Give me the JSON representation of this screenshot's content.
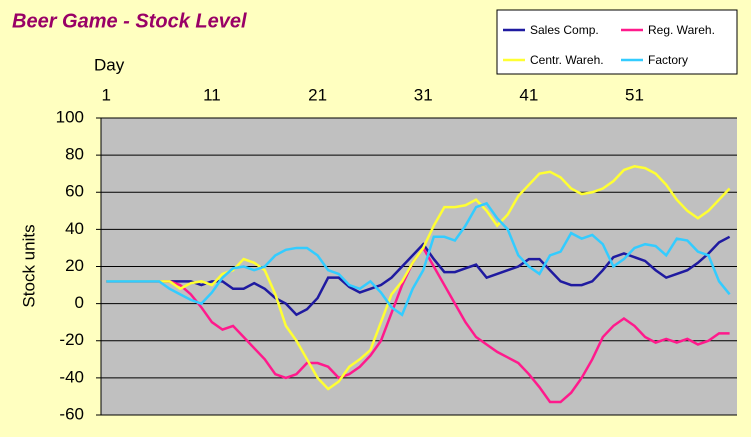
{
  "chart_data": {
    "type": "line",
    "title": "Beer Game - Stock Level",
    "x_label": "Day",
    "y_label": "Stock units",
    "x": [
      1,
      2,
      3,
      4,
      5,
      6,
      7,
      8,
      9,
      10,
      11,
      12,
      13,
      14,
      15,
      16,
      17,
      18,
      19,
      20,
      21,
      22,
      23,
      24,
      25,
      26,
      27,
      28,
      29,
      30,
      31,
      32,
      33,
      34,
      35,
      36,
      37,
      38,
      39,
      40,
      41,
      42,
      43,
      44,
      45,
      46,
      47,
      48,
      49,
      50,
      51,
      52,
      53,
      54,
      55,
      56,
      57,
      58,
      59,
      60
    ],
    "xlim": [
      0.5,
      60.7
    ],
    "xticks": [
      1,
      11,
      21,
      31,
      41,
      51
    ],
    "ylim": [
      -60,
      100
    ],
    "yticks": [
      -60,
      -40,
      -20,
      0,
      20,
      40,
      60,
      80,
      100
    ],
    "grid": true,
    "plot_background": "#c0c0c0",
    "series": [
      {
        "name": "Sales Comp.",
        "color": "#1f1aa0",
        "values": [
          12,
          12,
          12,
          12,
          12,
          12,
          12,
          12,
          12,
          10,
          12,
          12,
          8,
          8,
          11,
          8,
          3,
          0,
          -6,
          -3,
          3,
          14,
          14,
          9,
          6,
          8,
          10,
          14,
          20,
          26,
          32,
          24,
          17,
          17,
          19,
          21,
          14,
          16,
          18,
          20,
          24,
          24,
          18,
          12,
          10,
          10,
          12,
          18,
          25,
          27,
          25,
          23,
          18,
          14,
          16,
          18,
          22,
          27,
          33,
          36
        ]
      },
      {
        "name": "Reg. Wareh.",
        "color": "#ff1a8c",
        "values": [
          12,
          12,
          12,
          12,
          12,
          12,
          12,
          10,
          5,
          -2,
          -10,
          -14,
          -12,
          -18,
          -24,
          -30,
          -38,
          -40,
          -38,
          -32,
          -32,
          -34,
          -40,
          -38,
          -34,
          -28,
          -20,
          -5,
          10,
          22,
          30,
          20,
          10,
          0,
          -10,
          -18,
          -22,
          -26,
          -29,
          -32,
          -38,
          -45,
          -53,
          -53,
          -48,
          -40,
          -30,
          -18,
          -12,
          -8,
          -12,
          -18,
          -21,
          -19,
          -21,
          -19,
          -22,
          -20,
          -16,
          -16
        ]
      },
      {
        "name": "Centr. Wareh.",
        "color": "#ffff33",
        "values": [
          12,
          12,
          12,
          12,
          12,
          12,
          12,
          8,
          11,
          12,
          10,
          16,
          18,
          24,
          22,
          18,
          5,
          -12,
          -20,
          -30,
          -40,
          -46,
          -42,
          -34,
          -30,
          -25,
          -10,
          5,
          12,
          22,
          30,
          42,
          52,
          52,
          53,
          56,
          50,
          42,
          48,
          58,
          64,
          70,
          71,
          68,
          62,
          59,
          60,
          62,
          66,
          72,
          74,
          73,
          70,
          64,
          56,
          50,
          46,
          50,
          56,
          62
        ]
      },
      {
        "name": "Factory",
        "color": "#33ccff",
        "values": [
          12,
          12,
          12,
          12,
          12,
          12,
          8,
          5,
          2,
          0,
          6,
          14,
          19,
          20,
          18,
          20,
          26,
          29,
          30,
          30,
          26,
          18,
          16,
          10,
          8,
          12,
          6,
          -2,
          -6,
          8,
          18,
          36,
          36,
          34,
          42,
          52,
          54,
          46,
          40,
          26,
          20,
          16,
          26,
          28,
          38,
          35,
          37,
          32,
          20,
          24,
          30,
          32,
          31,
          26,
          35,
          34,
          28,
          26,
          12,
          5
        ]
      }
    ]
  }
}
